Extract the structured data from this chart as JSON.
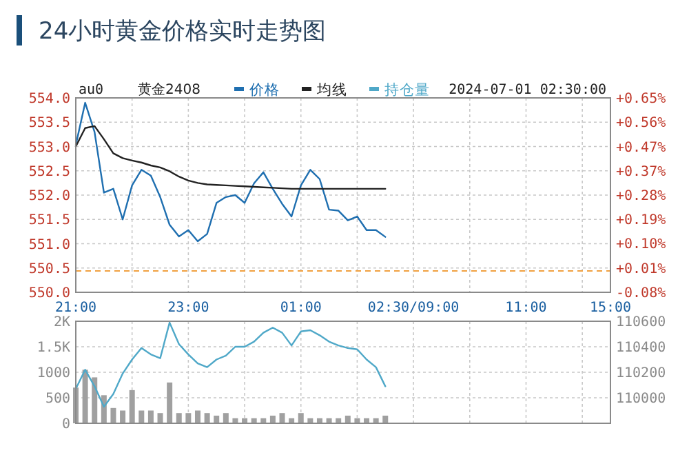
{
  "chart_data": [
    {
      "type": "line",
      "title": "24小时黄金价格实时走势图",
      "annotations": [
        "au0",
        "黄金2408",
        "2024-07-01 02:30:00"
      ],
      "legend": "top",
      "grid": true,
      "categories": [
        "21:00",
        null,
        null,
        null,
        null,
        null,
        null,
        null,
        null,
        null,
        null,
        null,
        "23:00",
        null,
        null,
        null,
        null,
        null,
        null,
        null,
        null,
        null,
        null,
        null,
        "01:00",
        null,
        null,
        null,
        null,
        null,
        null,
        null,
        null,
        null,
        null,
        null,
        "02:30/09:00",
        null,
        null,
        null,
        null,
        null,
        null,
        null,
        null,
        null,
        null,
        null,
        "11:00",
        null,
        null,
        null,
        null,
        null,
        null,
        null,
        null,
        "15:00"
      ],
      "ylim": [
        550,
        554
      ],
      "yticks": [
        {
          "value": 550,
          "label": "550.0"
        },
        550.5,
        {
          "value": 551,
          "label": "551.0"
        },
        551.5,
        {
          "value": 552,
          "label": "552.0"
        },
        552.5,
        {
          "value": 553,
          "label": "553.0"
        },
        553.5,
        {
          "value": 554,
          "label": "554.0"
        }
      ],
      "y2lim": [
        -0.08,
        0.647
      ],
      "y2ticks": [
        {
          "value": -0.08,
          "label": "-0.08%"
        },
        {
          "value": 0.011,
          "label": "+0.01%"
        },
        {
          "value": 0.102,
          "label": "+0.10%"
        },
        {
          "value": 0.193,
          "label": "+0.19%"
        },
        {
          "value": 0.283,
          "label": "+0.28%"
        },
        {
          "value": 0.374,
          "label": "+0.37%"
        },
        {
          "value": 0.465,
          "label": "+0.47%"
        },
        {
          "value": 0.556,
          "label": "+0.56%"
        },
        {
          "value": 0.647,
          "label": "+0.65%"
        }
      ],
      "ref_lines": [
        {
          "axis": "y",
          "value": 550.44,
          "color": "#f0a040",
          "line_style": "dashed"
        }
      ],
      "series": [
        {
          "name": "价格",
          "color": "#1f6fb0",
          "values": [
            553.03,
            553.9,
            553.3,
            552.05,
            552.13,
            551.5,
            552.2,
            552.52,
            552.4,
            551.96,
            551.39,
            551.15,
            551.28,
            551.05,
            551.2,
            551.84,
            551.96,
            552.0,
            551.84,
            552.24,
            552.47,
            552.13,
            551.82,
            551.56,
            552.2,
            552.52,
            552.33,
            551.7,
            551.68,
            551.48,
            551.56,
            551.28,
            551.28,
            551.14,
            null,
            null,
            null,
            null,
            null,
            null,
            null,
            null,
            null,
            null,
            null,
            null,
            null,
            null,
            null,
            null,
            null,
            null,
            null,
            null,
            null,
            null,
            null,
            null
          ]
        },
        {
          "name": "均线",
          "color": "#222222",
          "values": [
            553.0,
            553.38,
            553.42,
            553.15,
            552.86,
            552.76,
            552.71,
            552.67,
            552.61,
            552.57,
            552.49,
            552.38,
            552.3,
            552.25,
            552.22,
            552.21,
            552.2,
            552.19,
            552.18,
            552.17,
            552.16,
            552.15,
            552.14,
            552.13,
            552.13,
            552.13,
            552.13,
            552.13,
            552.13,
            552.13,
            552.13,
            552.13,
            552.13,
            552.13,
            null,
            null,
            null,
            null,
            null,
            null,
            null,
            null,
            null,
            null,
            null,
            null,
            null,
            null,
            null,
            null,
            null,
            null,
            null,
            null,
            null,
            null,
            null,
            null
          ]
        }
      ]
    },
    {
      "type": "bar",
      "legend": "top",
      "grid": true,
      "categories": [
        null,
        null,
        null,
        null,
        null,
        null,
        null,
        null,
        null,
        null,
        null,
        null,
        null,
        null,
        null,
        null,
        null,
        null,
        null,
        null,
        null,
        null,
        null,
        null,
        null,
        null,
        null,
        null,
        null,
        null,
        null,
        null,
        null,
        null,
        null,
        null,
        null,
        null,
        null,
        null,
        null,
        null,
        null,
        null,
        null,
        null,
        null,
        null,
        null,
        null,
        null,
        null,
        null,
        null,
        null,
        null,
        null,
        null
      ],
      "ylim": [
        0,
        2000
      ],
      "yticks": [
        0,
        500,
        1000,
        {
          "value": 1500,
          "label": "1.5K"
        },
        {
          "value": 2000,
          "label": "2K"
        }
      ],
      "y2lim": [
        109800,
        110600
      ],
      "y2ticks": [
        {
          "value": 109800,
          "label": null
        },
        110000,
        110200,
        110400,
        110600
      ],
      "series": [
        {
          "color": "#a0a0a0",
          "values": [
            700,
            1050,
            900,
            550,
            300,
            250,
            650,
            250,
            250,
            200,
            800,
            200,
            200,
            250,
            200,
            150,
            200,
            100,
            100,
            100,
            100,
            150,
            200,
            100,
            200,
            100,
            100,
            100,
            100,
            150,
            100,
            100,
            100,
            150,
            null,
            null,
            null,
            null,
            null,
            null,
            null,
            null,
            null,
            null,
            null,
            null,
            null,
            null,
            null,
            null,
            null,
            null,
            null,
            null,
            null,
            null,
            null,
            null
          ]
        },
        {
          "type": "line",
          "name": "持仓量",
          "color": "#4fa8c8",
          "axis": "y2",
          "values": [
            110070,
            110220,
            110090,
            109930,
            110030,
            110190,
            110300,
            110390,
            110340,
            110310,
            110590,
            110420,
            110340,
            110270,
            110240,
            110300,
            110330,
            110400,
            110400,
            110440,
            110510,
            110550,
            110510,
            110410,
            110520,
            110530,
            110490,
            110440,
            110410,
            110390,
            110380,
            110300,
            110240,
            110090,
            null,
            null,
            null,
            null,
            null,
            null,
            null,
            null,
            null,
            null,
            null,
            null,
            null,
            null,
            null,
            null,
            null,
            null,
            null,
            null,
            null,
            null,
            null,
            null
          ]
        }
      ]
    }
  ]
}
